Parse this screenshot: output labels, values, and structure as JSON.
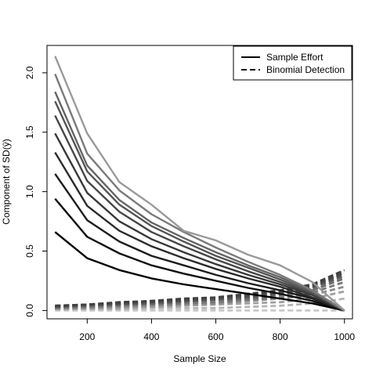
{
  "chart_data": {
    "type": "line",
    "title": "",
    "xlabel": "Sample Size",
    "ylabel": "Component of SD(ŷ)",
    "xlim": [
      75,
      1025
    ],
    "ylim": [
      -0.07,
      2.23
    ],
    "xticks": [
      200,
      400,
      600,
      800,
      1000
    ],
    "xtick_labels": [
      "200",
      "400",
      "600",
      "800",
      "1000"
    ],
    "yticks": [
      0.0,
      0.5,
      1.0,
      1.5,
      2.0
    ],
    "ytick_labels": [
      "0.0",
      "0.5",
      "1.0",
      "1.5",
      "2.0"
    ],
    "grid": false,
    "legend": {
      "position": "top-right",
      "entries": [
        {
          "label": "Sample Effort",
          "style": "solid"
        },
        {
          "label": "Binomial Detection",
          "style": "dashed"
        }
      ]
    },
    "x": [
      100,
      200,
      300,
      400,
      500,
      600,
      700,
      800,
      900,
      1000
    ],
    "solid_series": [
      {
        "color": "#000000",
        "values": [
          0.66,
          0.44,
          0.34,
          0.27,
          0.22,
          0.18,
          0.14,
          0.1,
          0.06,
          0.0
        ]
      },
      {
        "color": "#0e0e0e",
        "values": [
          0.94,
          0.62,
          0.48,
          0.38,
          0.31,
          0.25,
          0.19,
          0.14,
          0.08,
          0.0
        ]
      },
      {
        "color": "#1c1c1c",
        "values": [
          1.15,
          0.76,
          0.58,
          0.46,
          0.38,
          0.3,
          0.23,
          0.17,
          0.1,
          0.0
        ]
      },
      {
        "color": "#2a2a2a",
        "values": [
          1.33,
          0.88,
          0.67,
          0.54,
          0.44,
          0.35,
          0.27,
          0.2,
          0.11,
          0.0
        ]
      },
      {
        "color": "#383838",
        "values": [
          1.49,
          0.99,
          0.75,
          0.6,
          0.49,
          0.39,
          0.3,
          0.22,
          0.13,
          0.0
        ]
      },
      {
        "color": "#464646",
        "values": [
          1.64,
          1.09,
          0.83,
          0.66,
          0.54,
          0.43,
          0.33,
          0.24,
          0.14,
          0.0
        ]
      },
      {
        "color": "#555555",
        "values": [
          1.76,
          1.17,
          0.89,
          0.71,
          0.58,
          0.46,
          0.36,
          0.26,
          0.15,
          0.0
        ]
      },
      {
        "color": "#646464",
        "values": [
          1.84,
          1.22,
          0.93,
          0.74,
          0.61,
          0.49,
          0.38,
          0.28,
          0.16,
          0.0
        ]
      },
      {
        "color": "#7a7a7a",
        "values": [
          1.99,
          1.32,
          1.01,
          0.81,
          0.66,
          0.53,
          0.41,
          0.3,
          0.17,
          0.0
        ]
      },
      {
        "color": "#9a9a9a",
        "values": [
          2.14,
          1.49,
          1.08,
          0.89,
          0.67,
          0.59,
          0.47,
          0.38,
          0.24,
          0.0
        ]
      }
    ],
    "dashed_series": [
      {
        "color": "#c8c8c8",
        "values": [
          0.0,
          0.0,
          0.0,
          0.0,
          0.0,
          0.0,
          0.0,
          0.0,
          0.0,
          0.0
        ]
      },
      {
        "color": "#b4b4b4",
        "values": [
          0.01,
          0.01,
          0.01,
          0.02,
          0.02,
          0.02,
          0.03,
          0.04,
          0.06,
          0.1
        ]
      },
      {
        "color": "#a0a0a0",
        "values": [
          0.01,
          0.02,
          0.02,
          0.03,
          0.04,
          0.05,
          0.06,
          0.07,
          0.1,
          0.16
        ]
      },
      {
        "color": "#8c8c8c",
        "values": [
          0.02,
          0.02,
          0.03,
          0.04,
          0.05,
          0.06,
          0.08,
          0.1,
          0.13,
          0.2
        ]
      },
      {
        "color": "#787878",
        "values": [
          0.02,
          0.03,
          0.04,
          0.05,
          0.06,
          0.07,
          0.09,
          0.11,
          0.15,
          0.24
        ]
      },
      {
        "color": "#6a6a6a",
        "values": [
          0.03,
          0.04,
          0.05,
          0.06,
          0.07,
          0.09,
          0.1,
          0.13,
          0.17,
          0.27
        ]
      },
      {
        "color": "#5c5c5c",
        "values": [
          0.03,
          0.04,
          0.05,
          0.06,
          0.08,
          0.09,
          0.11,
          0.14,
          0.19,
          0.29
        ]
      },
      {
        "color": "#505050",
        "values": [
          0.03,
          0.05,
          0.06,
          0.07,
          0.08,
          0.1,
          0.12,
          0.15,
          0.2,
          0.31
        ]
      },
      {
        "color": "#484848",
        "values": [
          0.04,
          0.05,
          0.06,
          0.08,
          0.09,
          0.11,
          0.13,
          0.16,
          0.21,
          0.32
        ]
      },
      {
        "color": "#404040",
        "values": [
          0.04,
          0.05,
          0.07,
          0.08,
          0.1,
          0.11,
          0.14,
          0.17,
          0.22,
          0.34
        ]
      }
    ]
  }
}
